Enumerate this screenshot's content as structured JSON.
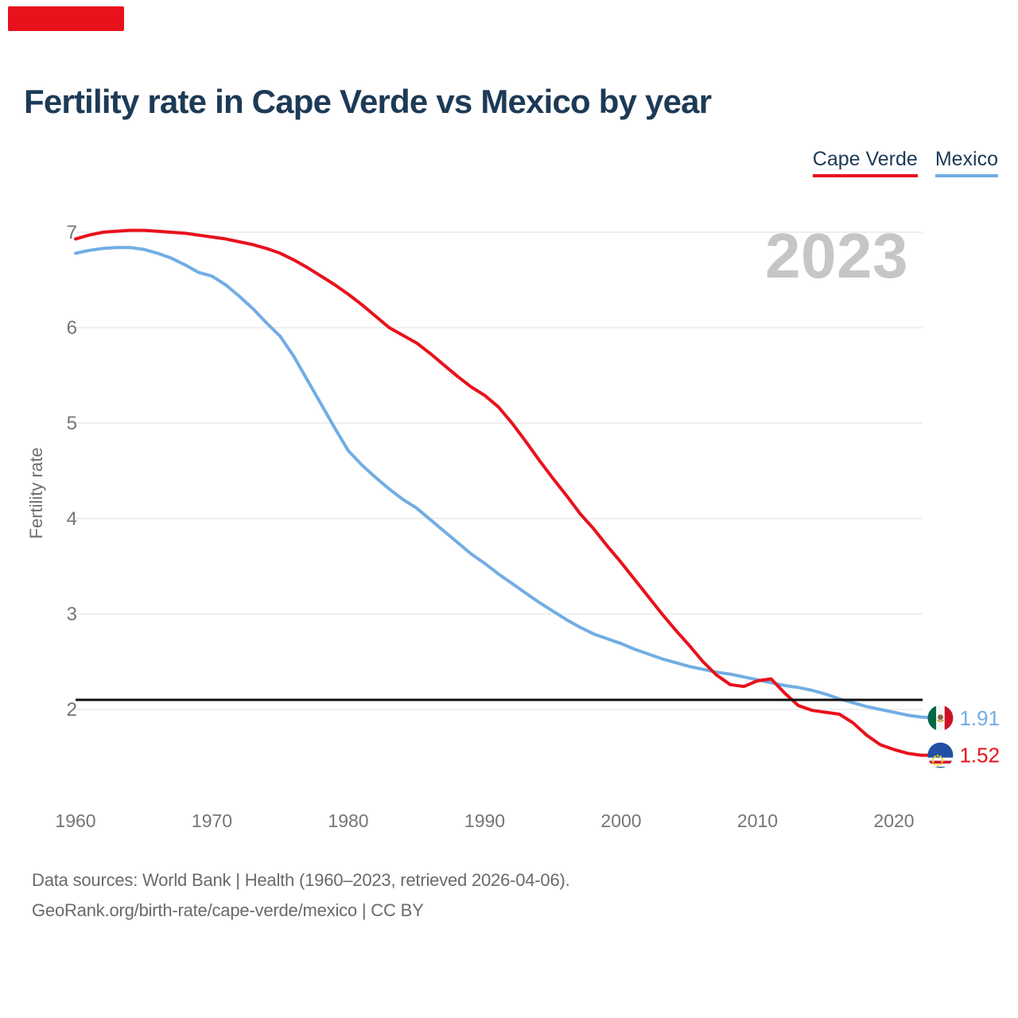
{
  "brand": {
    "logo_color": "#e8111c"
  },
  "header": {
    "title": "Fertility rate in Cape Verde vs Mexico by year"
  },
  "legend": [
    {
      "label": "Cape Verde",
      "color": "#e8111c"
    },
    {
      "label": "Mexico",
      "color": "#72ade4"
    }
  ],
  "watermark": "2023",
  "footer": {
    "line1": "Data sources: World Bank | Health (1960–2023, retrieved 2026-04-06).",
    "line2": "GeoRank.org/birth-rate/cape-verde/mexico | CC BY"
  },
  "chart_data": {
    "type": "line",
    "title": "Fertility rate in Cape Verde vs Mexico by year",
    "xlabel": "",
    "ylabel": "Fertility rate",
    "xlim": [
      1960,
      2023
    ],
    "ylim": [
      1.4,
      7.1
    ],
    "x_ticks": [
      1960,
      1970,
      1980,
      1990,
      2000,
      2010,
      2020
    ],
    "y_ticks": [
      2,
      3,
      4,
      5,
      6,
      7
    ],
    "grid": "horizontal",
    "legend_position": "top-right",
    "reference_line": {
      "y": 2.1,
      "color": "#0f0f0f"
    },
    "years": [
      1960,
      1961,
      1962,
      1963,
      1964,
      1965,
      1966,
      1967,
      1968,
      1969,
      1970,
      1971,
      1972,
      1973,
      1974,
      1975,
      1976,
      1977,
      1978,
      1979,
      1980,
      1981,
      1982,
      1983,
      1984,
      1985,
      1986,
      1987,
      1988,
      1989,
      1990,
      1991,
      1992,
      1993,
      1994,
      1995,
      1996,
      1997,
      1998,
      1999,
      2000,
      2001,
      2002,
      2003,
      2004,
      2005,
      2006,
      2007,
      2008,
      2009,
      2010,
      2011,
      2012,
      2013,
      2014,
      2015,
      2016,
      2017,
      2018,
      2019,
      2020,
      2021,
      2022,
      2023
    ],
    "series": [
      {
        "name": "Cape Verde",
        "color": "#e8111c",
        "end_label": "1.52",
        "flag": "cape-verde",
        "values": [
          6.93,
          6.97,
          7.0,
          7.01,
          7.02,
          7.02,
          7.01,
          7.0,
          6.99,
          6.97,
          6.95,
          6.93,
          6.9,
          6.87,
          6.83,
          6.78,
          6.71,
          6.63,
          6.54,
          6.45,
          6.35,
          6.24,
          6.12,
          6.0,
          5.92,
          5.84,
          5.73,
          5.61,
          5.49,
          5.38,
          5.29,
          5.17,
          5.0,
          4.81,
          4.61,
          4.42,
          4.24,
          4.05,
          3.89,
          3.71,
          3.54,
          3.36,
          3.18,
          3.0,
          2.83,
          2.67,
          2.5,
          2.36,
          2.26,
          2.24,
          2.3,
          2.32,
          2.17,
          2.04,
          1.99,
          1.97,
          1.95,
          1.86,
          1.73,
          1.63,
          1.58,
          1.54,
          1.52,
          1.52
        ]
      },
      {
        "name": "Mexico",
        "color": "#72ade4",
        "end_label": "1.91",
        "flag": "mexico",
        "values": [
          6.78,
          6.81,
          6.83,
          6.84,
          6.84,
          6.82,
          6.78,
          6.73,
          6.66,
          6.58,
          6.54,
          6.45,
          6.33,
          6.2,
          6.05,
          5.91,
          5.7,
          5.45,
          5.2,
          4.95,
          4.71,
          4.56,
          4.43,
          4.31,
          4.2,
          4.11,
          3.99,
          3.87,
          3.75,
          3.63,
          3.53,
          3.42,
          3.32,
          3.22,
          3.12,
          3.03,
          2.94,
          2.86,
          2.79,
          2.74,
          2.69,
          2.63,
          2.58,
          2.53,
          2.49,
          2.45,
          2.42,
          2.39,
          2.37,
          2.34,
          2.31,
          2.28,
          2.25,
          2.23,
          2.2,
          2.16,
          2.11,
          2.07,
          2.03,
          2.0,
          1.97,
          1.94,
          1.92,
          1.91
        ]
      }
    ]
  }
}
